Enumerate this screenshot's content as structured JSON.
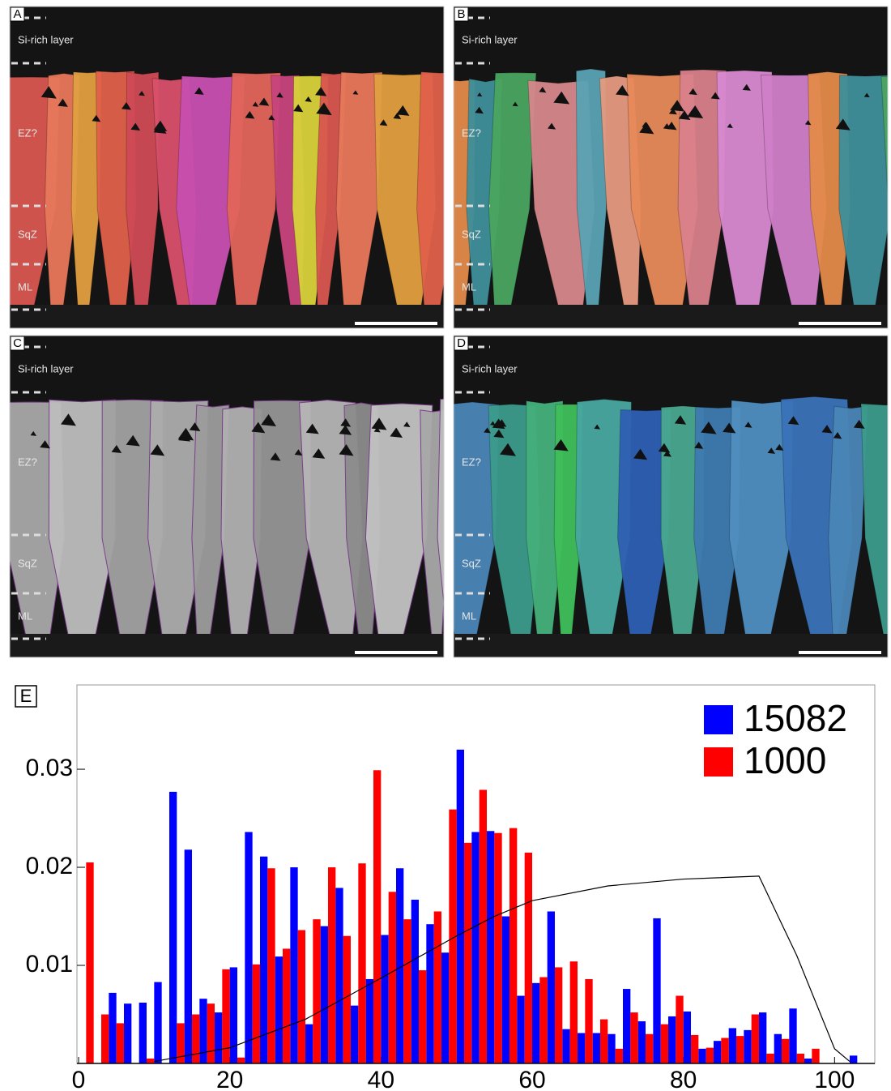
{
  "panels": [
    {
      "label": "A",
      "zones": [
        "Si-rich layer",
        "EZ?",
        "SqZ",
        "ML"
      ]
    },
    {
      "label": "B",
      "zones": [
        "Si-rich layer",
        "EZ?",
        "SqZ",
        "ML"
      ]
    },
    {
      "label": "C",
      "zones": [
        "Si-rich layer",
        "EZ?",
        "SqZ",
        "ML"
      ]
    },
    {
      "label": "D",
      "zones": [
        "Si-rich layer",
        "EZ?",
        "SqZ",
        "ML"
      ]
    }
  ],
  "chart_data": {
    "type": "histogram",
    "panel_label": "E",
    "bins": [
      0,
      2,
      4,
      6,
      8,
      10,
      12,
      14,
      16,
      18,
      20,
      22,
      24,
      26,
      28,
      30,
      32,
      34,
      36,
      38,
      40,
      42,
      44,
      46,
      48,
      50,
      52,
      54,
      56,
      58,
      60,
      62,
      64,
      66,
      68,
      70,
      72,
      74,
      76,
      78,
      80,
      82,
      84,
      86,
      88,
      90,
      92,
      94,
      96,
      98,
      100,
      102,
      104
    ],
    "series": [
      {
        "name": "15082",
        "color": "#0000ff",
        "values": [
          0,
          0,
          0.0072,
          0.0061,
          0.0062,
          0.0083,
          0.0277,
          0.0218,
          0.0066,
          0.0052,
          0.0098,
          0.0236,
          0.0211,
          0.0109,
          0.02,
          0.004,
          0.014,
          0.0179,
          0.0059,
          0.0086,
          0.0131,
          0.0199,
          0.0167,
          0.0142,
          0.0113,
          0.032,
          0.0236,
          0.0237,
          0.015,
          0.0069,
          0.0082,
          0.0155,
          0.0035,
          0.0031,
          0.0031,
          0.003,
          0.0076,
          0.0043,
          0.0148,
          0.0048,
          0.0053,
          0.0015,
          0.0023,
          0.0036,
          0.0034,
          0.0052,
          0.003,
          0.0056,
          0.0005,
          0,
          0,
          0.0008
        ]
      },
      {
        "name": "1000",
        "color": "#ff0000",
        "values": [
          0.0205,
          0.005,
          0.0041,
          0,
          0.0005,
          0,
          0.0041,
          0.005,
          0.0061,
          0.0096,
          0.0006,
          0.0101,
          0.0199,
          0.0117,
          0.0136,
          0.0147,
          0.02,
          0.013,
          0.0204,
          0.0299,
          0.0175,
          0.0147,
          0.0095,
          0.0155,
          0.0259,
          0.0225,
          0.0279,
          0.0235,
          0.024,
          0.0215,
          0.0088,
          0.0098,
          0.0104,
          0.0086,
          0.0045,
          0.0015,
          0.0052,
          0.003,
          0.004,
          0.0069,
          0.0029,
          0.0016,
          0.0026,
          0.0028,
          0.005,
          0.001,
          0.0025,
          0.001,
          0.0015,
          0,
          0,
          0
        ]
      }
    ],
    "curve": {
      "color": "#000000",
      "x": [
        10,
        20,
        30,
        40,
        50,
        55,
        60,
        70,
        80,
        90,
        95,
        100,
        102
      ],
      "values": [
        0.0002,
        0.0016,
        0.0045,
        0.0087,
        0.013,
        0.015,
        0.0166,
        0.0181,
        0.0188,
        0.0191,
        0.011,
        0.0015,
        0.0002
      ]
    },
    "xlim": [
      0,
      105
    ],
    "xticks": [
      0,
      20,
      40,
      60,
      80,
      100
    ],
    "ylim": [
      0,
      0.0386
    ],
    "yticks": [
      0.01,
      0.02,
      0.03
    ],
    "legend": "top-right"
  }
}
